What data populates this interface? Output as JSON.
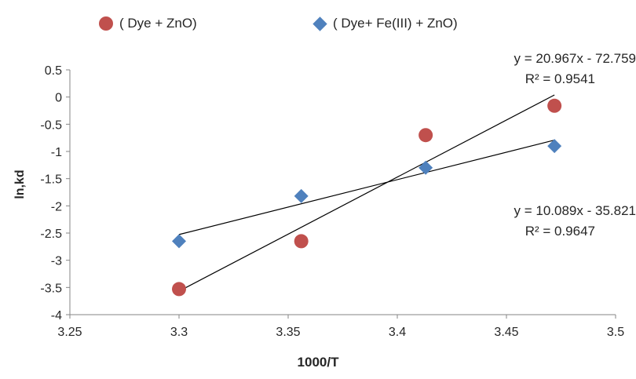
{
  "chart_data": {
    "type": "scatter",
    "xlabel": "1000/T",
    "ylabel": "ln,kd",
    "xlim": [
      3.25,
      3.5
    ],
    "ylim": [
      -4,
      0.5
    ],
    "x_ticks": [
      "3.25",
      "3.3",
      "3.35",
      "3.4",
      "3.45",
      "3.5"
    ],
    "y_ticks": [
      "0.5",
      "0",
      "-0.5",
      "-1",
      "-1.5",
      "-2",
      "-2.5",
      "-3",
      "-3.5",
      "-4"
    ],
    "grid": false,
    "legend_position": "top",
    "series": [
      {
        "name": "( Dye + ZnO)",
        "marker": "circle",
        "color": "#c0504d",
        "x": [
          3.3,
          3.356,
          3.413,
          3.472
        ],
        "y": [
          -3.53,
          -2.65,
          -0.7,
          -0.16
        ],
        "trendline": {
          "slope": 20.967,
          "intercept": -72.759,
          "x_range": [
            3.3,
            3.472
          ]
        },
        "equation": "y = 20.967x - 72.759",
        "r_squared": "R² = 0.9541"
      },
      {
        "name": "( Dye+ Fe(III) + ZnO)",
        "marker": "diamond",
        "color": "#4f81bd",
        "x": [
          3.3,
          3.356,
          3.413,
          3.472
        ],
        "y": [
          -2.65,
          -1.82,
          -1.3,
          -0.9
        ],
        "trendline": {
          "slope": 10.089,
          "intercept": -35.821,
          "x_range": [
            3.3,
            3.472
          ]
        },
        "equation": "y = 10.089x - 35.821",
        "r_squared": "R² = 0.9647"
      }
    ]
  }
}
